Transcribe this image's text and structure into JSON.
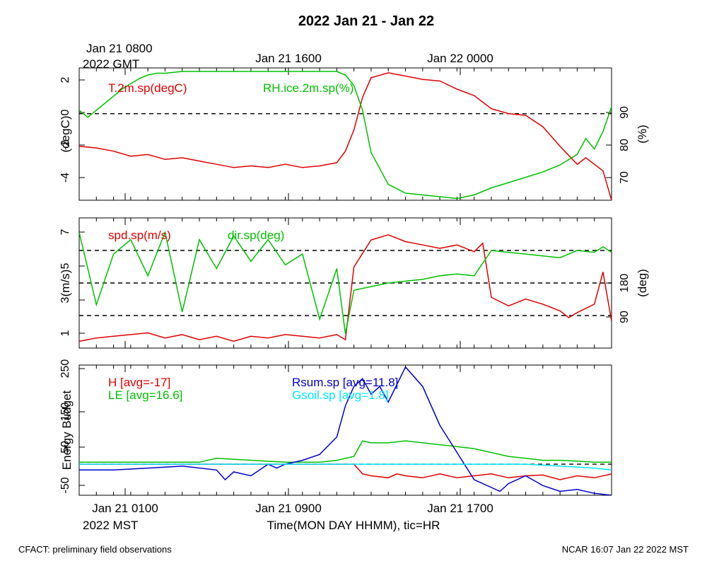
{
  "title": "2022 Jan 21 - Jan 22",
  "top_labels": {
    "gmt_line1": "Jan 21 0800",
    "gmt_line2": "2022 GMT",
    "gmt_mid": "Jan 21 1600",
    "gmt_right": "Jan 22 0000"
  },
  "bottom_labels": {
    "mst_left": "Jan 21 0100",
    "mst_left2": "2022 MST",
    "mst_mid": "Jan 21 0900",
    "mst_right": "Jan 21 1700",
    "xaxis": "Time(MON DAY HHMM), tic=HR"
  },
  "footer": {
    "left": "CFACT: preliminary field observations",
    "right": "NCAR 16:07 Jan 22 2022 MST"
  },
  "colors": {
    "red": "#e00000",
    "green": "#00c000",
    "blue": "#0000d0",
    "cyan": "#00e8ff",
    "black": "#000000"
  },
  "chart_data": [
    {
      "type": "line",
      "ylabel_left": "(degC)",
      "ylabel_right": "(%)",
      "ylim_left": [
        -5.3,
        2.8
      ],
      "yticks_left": [
        "2",
        "0",
        "-2",
        "-4"
      ],
      "ylim_right": [
        64.5,
        102
      ],
      "yticks_right": [
        "90",
        "80",
        "70"
      ],
      "xlim": [
        0,
        31
      ],
      "reference_lines_left": [
        0
      ],
      "legend": [
        {
          "label": "T.2m.sp(degC)",
          "color": "#e00000"
        },
        {
          "label": "RH.ice.2m.sp(%)",
          "color": "#00c000"
        }
      ],
      "series": [
        {
          "name": "T.2m.sp(degC)",
          "axis": "left",
          "x": [
            0,
            1,
            2,
            3,
            4,
            5,
            6,
            7,
            8,
            9,
            10,
            11,
            12,
            13,
            14,
            15,
            15.5,
            16,
            16.5,
            17,
            18,
            19,
            20,
            21,
            22,
            23,
            24,
            25,
            26,
            27,
            28,
            29,
            29.5,
            30,
            30.5,
            31
          ],
          "y": [
            -2.0,
            -2.1,
            -2.3,
            -2.6,
            -2.5,
            -2.8,
            -2.7,
            -2.9,
            -3.1,
            -3.3,
            -3.2,
            -3.3,
            -3.1,
            -3.3,
            -3.2,
            -3.0,
            -2.3,
            -1.0,
            1.0,
            2.2,
            2.5,
            2.3,
            2.1,
            2.0,
            1.5,
            1.1,
            0.3,
            0.0,
            -0.1,
            -0.8,
            -2.0,
            -3.1,
            -2.7,
            -3.1,
            -3.5,
            -5.3
          ]
        },
        {
          "name": "RH.ice.2m.sp(%)",
          "axis": "right",
          "x": [
            0,
            0.5,
            1,
            1.5,
            2,
            2.5,
            3,
            3.5,
            4,
            4.5,
            5,
            6,
            7,
            8,
            9,
            10,
            11,
            12,
            13,
            14,
            15,
            15.5,
            16,
            16.5,
            17,
            18,
            19,
            20,
            21,
            22,
            23,
            24,
            25,
            26,
            27,
            28,
            29,
            29.5,
            30,
            30.5,
            31
          ],
          "y": [
            90.0,
            88.0,
            90.0,
            92.0,
            94.0,
            96.0,
            97.5,
            99.0,
            100.0,
            100.5,
            100.5,
            101.0,
            101.0,
            101.0,
            101.0,
            101.0,
            101.0,
            101.0,
            101.0,
            101.0,
            101.0,
            100.0,
            97.0,
            90.0,
            78.0,
            69.0,
            66.5,
            66.0,
            65.5,
            65.0,
            66.0,
            68.0,
            69.5,
            71.0,
            72.5,
            74.5,
            77.5,
            82.0,
            79.0,
            84.0,
            91.0
          ]
        }
      ]
    },
    {
      "type": "line",
      "ylabel_left": "(m/s)",
      "ylabel_right": "(deg)",
      "ylim_left": [
        0.2,
        7.9
      ],
      "yticks_left": [
        "7",
        "5",
        "3",
        "1"
      ],
      "ylim_right": [
        0,
        360
      ],
      "yticks_right": [
        "180",
        "90"
      ],
      "xlim": [
        0,
        31
      ],
      "reference_lines_right": [
        90,
        180,
        270
      ],
      "legend": [
        {
          "label": "spd.sp(m/s)",
          "color": "#e00000"
        },
        {
          "label": "dir.sp(deg)",
          "color": "#00c000"
        }
      ],
      "series": [
        {
          "name": "spd.sp(m/s)",
          "axis": "left",
          "x": [
            0,
            1,
            2,
            3,
            4,
            5,
            6,
            7,
            8,
            9,
            10,
            11,
            12,
            13,
            14,
            15,
            15.5,
            16,
            17,
            18,
            19,
            20,
            21,
            22,
            23,
            23.5,
            24,
            25,
            26,
            27,
            28,
            28.5,
            29,
            30,
            30.5,
            31
          ],
          "y": [
            0.6,
            0.8,
            0.9,
            1.0,
            1.1,
            0.8,
            1.0,
            0.7,
            0.9,
            0.6,
            0.9,
            0.8,
            1.0,
            0.9,
            0.8,
            1.0,
            0.7,
            5.0,
            6.6,
            6.9,
            6.5,
            6.3,
            6.1,
            6.3,
            5.9,
            6.4,
            3.2,
            2.7,
            3.1,
            2.8,
            2.4,
            2.0,
            2.3,
            2.8,
            4.7,
            1.8
          ]
        },
        {
          "name": "dir.sp(deg)",
          "axis": "right",
          "x": [
            0,
            1,
            2,
            3,
            4,
            5,
            6,
            7,
            8,
            9,
            10,
            11,
            12,
            13,
            14,
            15,
            15.5,
            16,
            17,
            18,
            19,
            20,
            21,
            22,
            23,
            24,
            25,
            26,
            27,
            28,
            29,
            30,
            30.5,
            31
          ],
          "y": [
            320,
            120,
            260,
            300,
            200,
            320,
            100,
            300,
            220,
            310,
            240,
            300,
            230,
            260,
            80,
            220,
            40,
            160,
            170,
            180,
            185,
            190,
            200,
            205,
            200,
            270,
            265,
            260,
            255,
            250,
            270,
            265,
            280,
            265
          ]
        }
      ]
    },
    {
      "type": "line",
      "ylabel_left": "Energy Budget",
      "ylim_left": [
        -80,
        255
      ],
      "yticks_left": [
        "250",
        "150",
        "50",
        "-50"
      ],
      "xlim": [
        0,
        31
      ],
      "reference_lines_left": [
        0
      ],
      "legend": [
        {
          "label": "H [avg=-17]",
          "color": "#e00000"
        },
        {
          "label": "LE [avg=16.6]",
          "color": "#00c000"
        },
        {
          "label": "Rsum.sp [avg=11.8]",
          "color": "#0000d0"
        },
        {
          "label": "Gsoil.sp [avg=1.8]",
          "color": "#00e8ff"
        }
      ],
      "series": [
        {
          "name": "H [avg=-17]",
          "x": [
            0,
            2,
            4,
            6,
            8,
            10,
            12,
            14,
            16,
            16.5,
            17,
            18,
            18.5,
            19,
            20,
            21,
            22,
            23,
            24,
            25,
            26,
            27,
            28,
            29,
            30,
            31
          ],
          "y": [
            0,
            0,
            0,
            0,
            0,
            0,
            0,
            0,
            0,
            -25,
            -30,
            -35,
            -25,
            -30,
            -35,
            -25,
            -35,
            -30,
            -25,
            -35,
            -30,
            -28,
            -40,
            -30,
            -35,
            -25
          ]
        },
        {
          "name": "LE [avg=16.6]",
          "x": [
            0,
            4,
            7,
            8,
            12,
            14,
            15,
            16,
            16.5,
            17,
            18,
            19,
            20,
            21,
            22,
            23,
            24,
            25,
            26,
            27,
            28,
            29,
            30,
            31
          ],
          "y": [
            5,
            5,
            5,
            15,
            5,
            5,
            10,
            20,
            60,
            55,
            55,
            60,
            55,
            50,
            45,
            40,
            30,
            20,
            15,
            10,
            10,
            8,
            5,
            5
          ]
        },
        {
          "name": "Rsum.sp [avg=11.8]",
          "x": [
            0,
            2,
            4,
            6,
            8,
            8.5,
            9,
            10,
            11,
            11.5,
            12,
            13,
            14,
            15,
            15.5,
            16,
            16.5,
            17,
            17.5,
            18,
            19,
            20,
            21,
            22,
            23,
            24,
            24.5,
            25,
            26,
            27,
            28,
            29,
            30,
            31
          ],
          "y": [
            -15,
            -15,
            -10,
            -5,
            -15,
            -40,
            -20,
            -30,
            0,
            -10,
            0,
            10,
            25,
            70,
            150,
            200,
            220,
            180,
            200,
            160,
            250,
            200,
            100,
            30,
            -40,
            -60,
            -70,
            -50,
            -30,
            -55,
            -70,
            -65,
            -75,
            -80
          ]
        },
        {
          "name": "Gsoil.sp [avg=1.8]",
          "x": [
            0,
            10,
            20,
            26,
            28,
            30,
            31
          ],
          "y": [
            0,
            0,
            0,
            0,
            -5,
            -10,
            -15
          ]
        }
      ]
    }
  ]
}
